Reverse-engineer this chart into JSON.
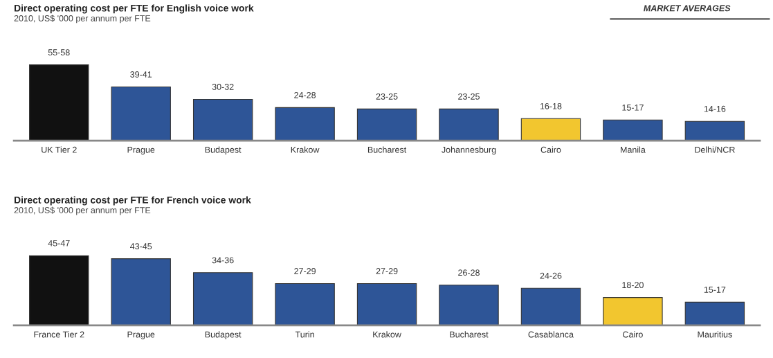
{
  "chart_data": [
    {
      "type": "bar",
      "title": "Direct operating cost per FTE for English voice work",
      "subtitle": "2010, US$ '000 per annum per FTE",
      "annotations": [
        "MARKET AVERAGES"
      ],
      "categories": [
        "UK Tier 2",
        "Prague",
        "Budapest",
        "Krakow",
        "Bucharest",
        "Johannesburg",
        "Cairo",
        "Manila",
        "Delhi/NCR"
      ],
      "values": [
        55,
        39,
        30,
        24,
        23,
        23,
        16,
        15,
        14
      ],
      "value_labels": [
        "55-58",
        "39-41",
        "30-32",
        "24-28",
        "23-25",
        "23-25",
        "16-18",
        "15-17",
        "14-16"
      ],
      "colors": [
        "#111111",
        "#2e5597",
        "#2e5597",
        "#2e5597",
        "#2e5597",
        "#2e5597",
        "#f2c62f",
        "#2e5597",
        "#2e5597"
      ],
      "grid": false,
      "legend": false
    },
    {
      "type": "bar",
      "title": "Direct operating cost per FTE for French voice work",
      "subtitle": "2010, US$ '000 per annum per FTE",
      "categories": [
        "France Tier 2",
        "Prague",
        "Budapest",
        "Turin",
        "Krakow",
        "Bucharest",
        "Casablanca",
        "Cairo",
        "Mauritius"
      ],
      "values": [
        45,
        43,
        34,
        27,
        27,
        26,
        24,
        18,
        15
      ],
      "value_labels": [
        "45-47",
        "43-45",
        "34-36",
        "27-29",
        "27-29",
        "26-28",
        "24-26",
        "18-20",
        "15-17"
      ],
      "colors": [
        "#111111",
        "#2e5597",
        "#2e5597",
        "#2e5597",
        "#2e5597",
        "#2e5597",
        "#2e5597",
        "#f2c62f",
        "#2e5597"
      ],
      "grid": false,
      "legend": false
    }
  ]
}
